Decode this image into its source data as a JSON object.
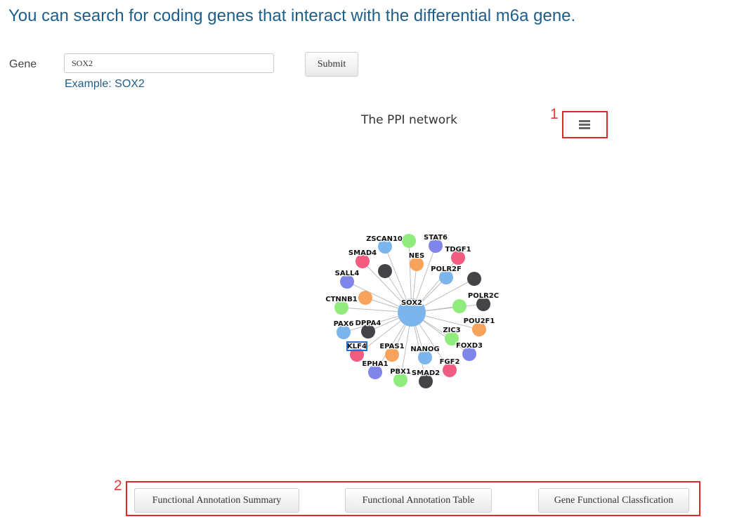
{
  "heading": "You can search for coding genes that interact with the differential m6a gene.",
  "form": {
    "gene_label": "Gene",
    "gene_value": "SOX2",
    "example": "Example: SOX2",
    "submit_label": "Submit"
  },
  "chart": {
    "title": "The PPI network",
    "menu_icon": "hamburger-menu-icon",
    "center_node": {
      "label": "SOX2",
      "color": "#7cb5ec"
    },
    "nodes": [
      {
        "label": "ZSCAN10",
        "color": "#7cb5ec"
      },
      {
        "label": "",
        "color": "#90ed7d"
      },
      {
        "label": "STAT6",
        "color": "#8085e9"
      },
      {
        "label": "NES",
        "color": "#f7a35c"
      },
      {
        "label": "TDGF1",
        "color": "#f15c80"
      },
      {
        "label": "SMAD4",
        "color": "#f15c80"
      },
      {
        "label": "",
        "color": "#434348"
      },
      {
        "label": "POLR2F",
        "color": "#7cb5ec"
      },
      {
        "label": "",
        "color": "#434348"
      },
      {
        "label": "SALL4",
        "color": "#8085e9"
      },
      {
        "label": "",
        "color": "#f7a35c"
      },
      {
        "label": "POLR2C",
        "color": "#434348"
      },
      {
        "label": "CTNNB1",
        "color": "#90ed7d"
      },
      {
        "label": "",
        "color": "#90ed7d"
      },
      {
        "label": "POU2F1",
        "color": "#f7a35c"
      },
      {
        "label": "PAX6",
        "color": "#7cb5ec"
      },
      {
        "label": "DPPA4",
        "color": "#434348"
      },
      {
        "label": "ZIC3",
        "color": "#90ed7d"
      },
      {
        "label": "KLF4",
        "color": "#f15c80",
        "selected": true
      },
      {
        "label": "EPAS1",
        "color": "#f7a35c"
      },
      {
        "label": "NANOG",
        "color": "#7cb5ec"
      },
      {
        "label": "FOXD3",
        "color": "#8085e9"
      },
      {
        "label": "EPHA1",
        "color": "#8085e9"
      },
      {
        "label": "FGF2",
        "color": "#f15c80"
      },
      {
        "label": "PBX1",
        "color": "#90ed7d"
      },
      {
        "label": "SMAD2",
        "color": "#434348"
      }
    ]
  },
  "annotations": {
    "one": "1",
    "two": "2"
  },
  "bottom_buttons": {
    "summary": "Functional Annotation Summary",
    "table": "Functional Annotation Table",
    "classification": "Gene Functional Classfication"
  }
}
